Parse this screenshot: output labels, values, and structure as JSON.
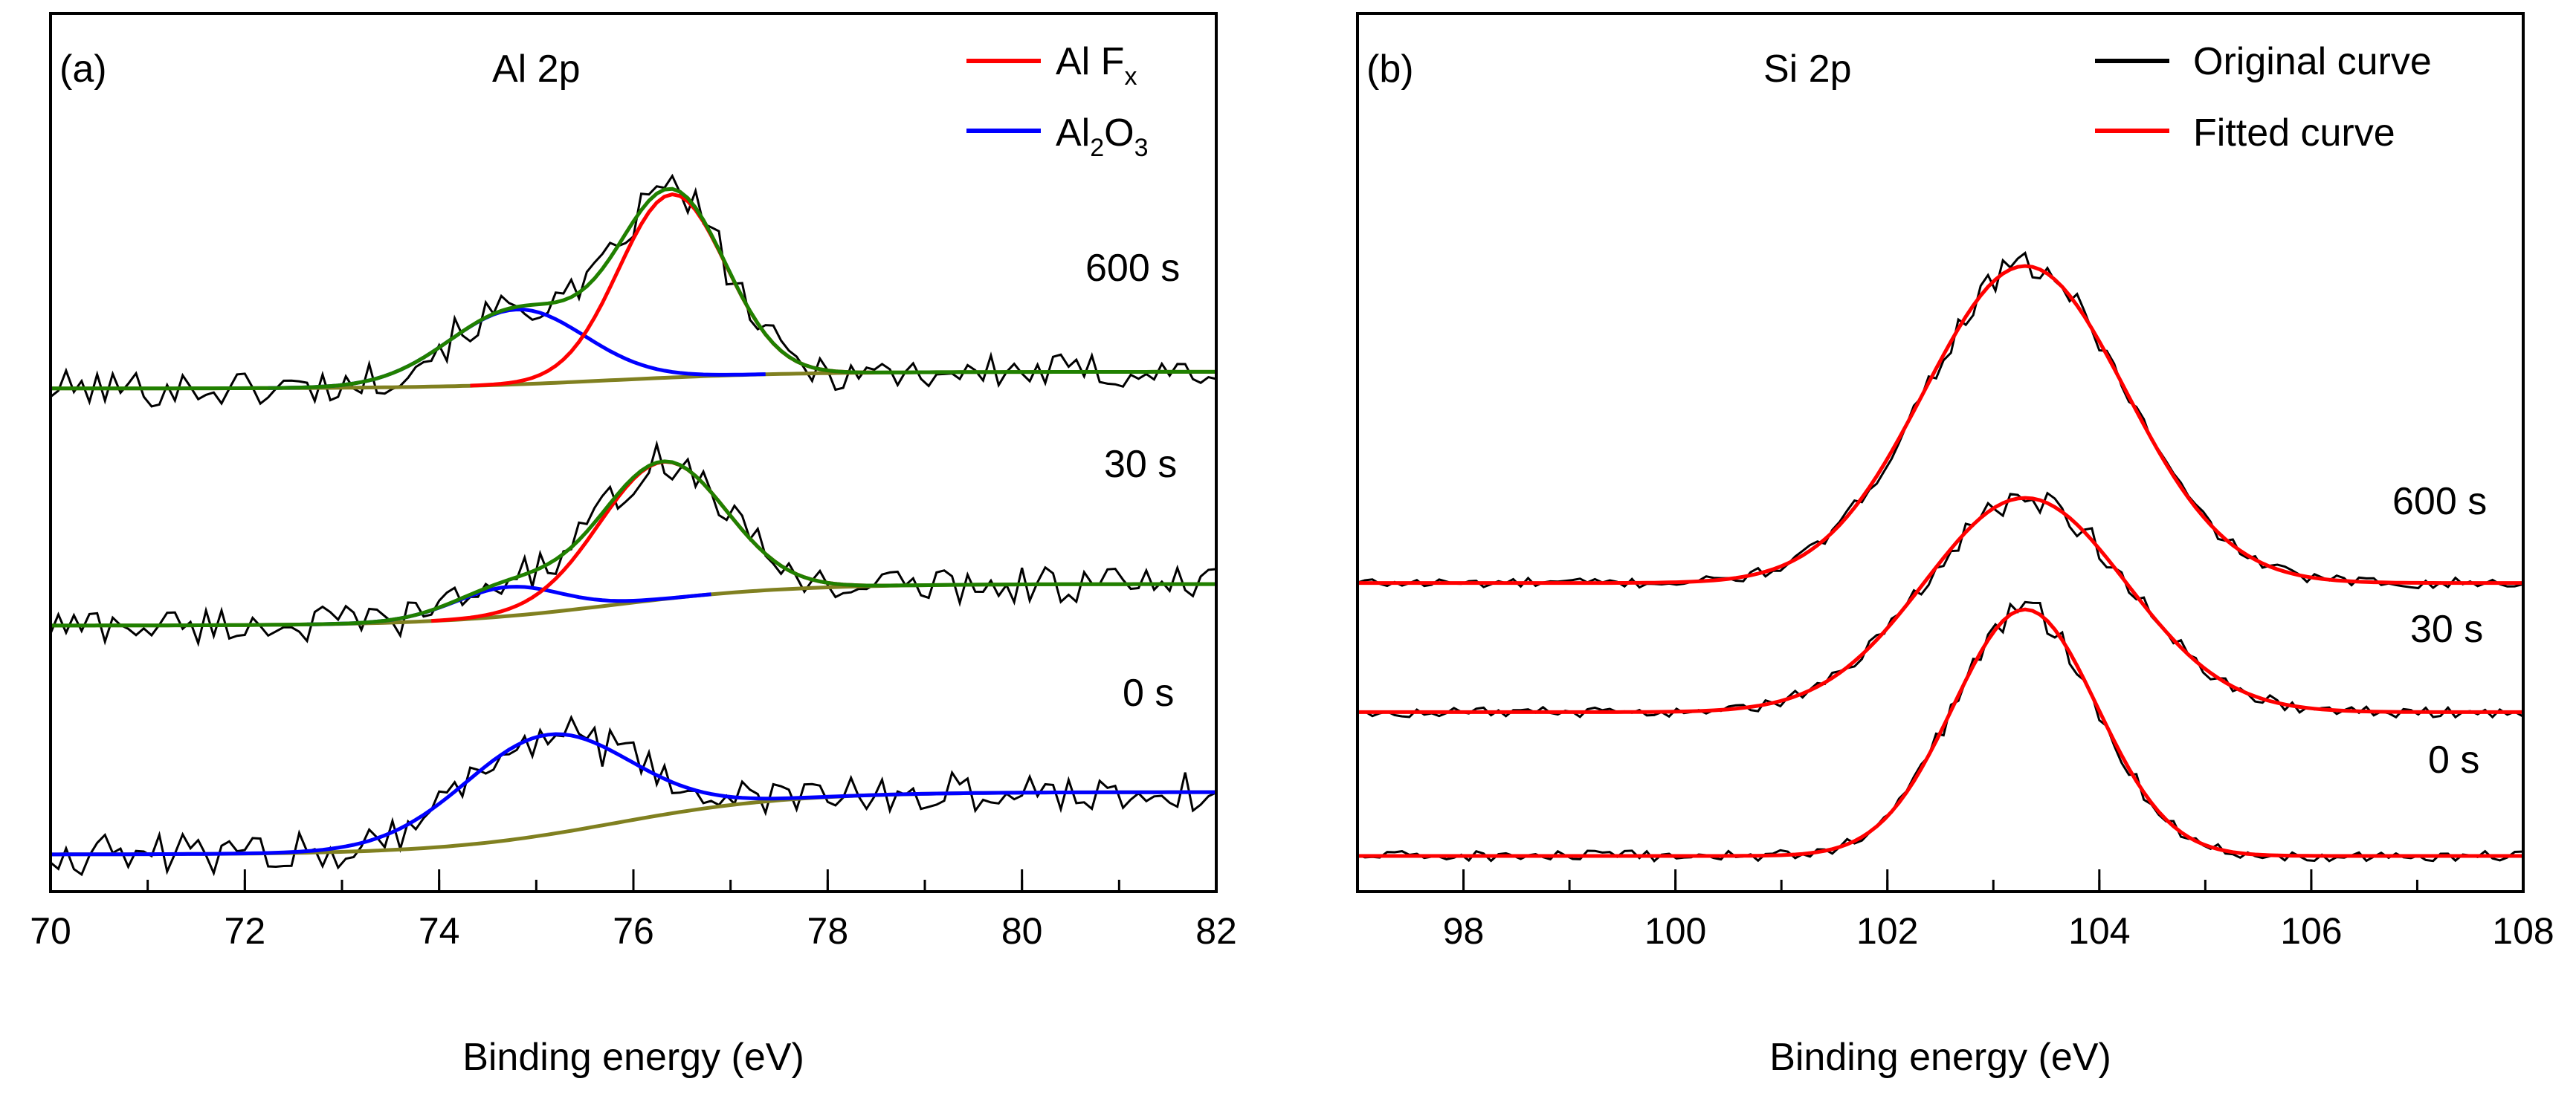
{
  "chart_data": [
    {
      "type": "line",
      "panel_label": "(a)",
      "title": "Al 2p",
      "xlabel": "Binding energy (eV)",
      "ylabel": "",
      "xlim": [
        70,
        82
      ],
      "x_ticks": [
        "70",
        "72",
        "74",
        "76",
        "78",
        "80",
        "82"
      ],
      "legend": {
        "placement": "top-right",
        "entries": [
          {
            "label": "Al F",
            "sub": "x",
            "color": "#ff0000"
          },
          {
            "label_parts": [
              "Al",
              "2",
              "O",
              "3"
            ],
            "color": "#0000ff"
          }
        ]
      },
      "colors": {
        "original": "#000000",
        "fit": "#208000",
        "alf": "#ff0000",
        "oxide": "#0000ff",
        "background": "#808020"
      },
      "series": [
        {
          "name": "600 s",
          "offset": 1.12,
          "bg_start": 0.0,
          "bg_end": 0.04,
          "peaks": [
            {
              "component": "AlFx",
              "center": 76.4,
              "sigma": 0.55,
              "height": 0.44
            },
            {
              "component": "Al2O3",
              "center": 74.8,
              "sigma": 0.7,
              "height": 0.18
            }
          ],
          "noise": 0.045
        },
        {
          "name": "30 s",
          "offset": 0.55,
          "bg_start": 0.0,
          "bg_end": 0.1,
          "peaks": [
            {
              "component": "AlFx",
              "center": 76.3,
              "sigma": 0.65,
              "height": 0.33
            },
            {
              "component": "Al2O3",
              "center": 74.7,
              "sigma": 0.55,
              "height": 0.07
            }
          ],
          "noise": 0.045
        },
        {
          "name": "0 s",
          "offset": 0.0,
          "bg_start": 0.0,
          "bg_end": 0.15,
          "fit_color": "#0000ff",
          "peaks": [
            {
              "component": "Al2O3",
              "center": 75.1,
              "sigma": 0.85,
              "height": 0.24
            }
          ],
          "noise": 0.05
        }
      ]
    },
    {
      "type": "line",
      "panel_label": "(b)",
      "title": "Si 2p",
      "xlabel": "Binding energy (eV)",
      "ylabel": "",
      "xlim": [
        97,
        108
      ],
      "x_ticks": [
        "98",
        "100",
        "102",
        "104",
        "106",
        "108"
      ],
      "legend": {
        "placement": "top-right",
        "entries": [
          {
            "label": "Original curve",
            "color": "#000000"
          },
          {
            "label": "Fitted curve",
            "color": "#ff0000"
          }
        ]
      },
      "colors": {
        "original": "#000000",
        "fit": "#ff0000"
      },
      "series": [
        {
          "name": "600 s",
          "offset": 0.93,
          "center": 103.3,
          "sigma": 0.95,
          "height": 1.08,
          "noise": 0.018
        },
        {
          "name": "30 s",
          "offset": 0.49,
          "center": 103.3,
          "sigma": 0.95,
          "height": 0.73,
          "noise": 0.018
        },
        {
          "name": "0 s",
          "offset": 0.0,
          "center": 103.3,
          "sigma": 0.68,
          "height": 0.84,
          "noise": 0.018
        }
      ]
    }
  ]
}
